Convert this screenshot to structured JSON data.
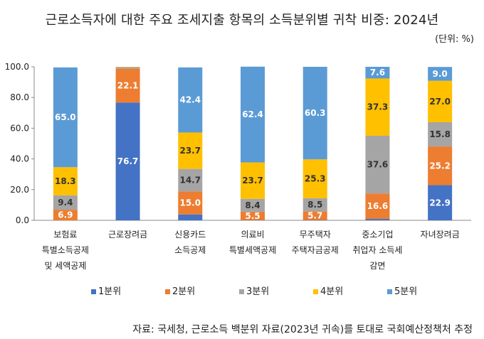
{
  "title": "근로소득자에 대한 주요 조세지출 항목의 소득분위별 귀착 비중: 2024년",
  "unit": "(단위: %)",
  "source": "자료: 국세청, 근로소득 백분위 자료(2023년 귀속)를 토대로 국회예산정책처 추정",
  "colors": {
    "1분위": "#4472c4",
    "2분위": "#ed7d31",
    "3분위": "#a5a5a5",
    "4분위": "#ffc000",
    "5분위": "#5b9bd5"
  },
  "chart_data": {
    "type": "bar",
    "stacked": true,
    "categories": [
      [
        "보험료",
        "특별소득공제",
        "및 세액공제"
      ],
      [
        "근로장려금"
      ],
      [
        "신용카드",
        "소득공제"
      ],
      [
        "의료비",
        "특별세액공제"
      ],
      [
        "무주택자",
        "주택자금공제"
      ],
      [
        "중소기업",
        "취업자 소득세",
        "감면"
      ],
      [
        "자녀장려금"
      ]
    ],
    "series": [
      {
        "name": "1분위",
        "values": [
          0.0,
          76.7,
          3.8,
          0.1,
          0.2,
          0.9,
          22.9
        ]
      },
      {
        "name": "2분위",
        "values": [
          6.9,
          22.1,
          15.0,
          5.5,
          5.7,
          16.6,
          25.2
        ]
      },
      {
        "name": "3분위",
        "values": [
          9.4,
          1.0,
          14.7,
          8.4,
          8.5,
          37.6,
          15.8
        ]
      },
      {
        "name": "4분위",
        "values": [
          18.3,
          0.2,
          23.7,
          23.7,
          25.3,
          37.3,
          27.0
        ]
      },
      {
        "name": "5분위",
        "values": [
          65.0,
          0.0,
          42.4,
          62.4,
          60.3,
          7.6,
          9.0
        ]
      }
    ],
    "data_labels": [
      [
        "",
        "6.9",
        "9.4",
        "18.3",
        "65.0"
      ],
      [
        "76.7",
        "22.1",
        "",
        "",
        ""
      ],
      [
        "",
        "15.0",
        "14.7",
        "23.7",
        "42.4"
      ],
      [
        "",
        "5.5",
        "8.4",
        "23.7",
        "62.4"
      ],
      [
        "",
        "5.7",
        "8.5",
        "25.3",
        "60.3"
      ],
      [
        "",
        "16.6",
        "37.6",
        "37.3",
        "7.6"
      ],
      [
        "22.9",
        "25.2",
        "15.8",
        "27.0",
        "9.0"
      ]
    ],
    "yticks": [
      "0.0",
      "20.0",
      "40.0",
      "60.0",
      "80.0",
      "100.0"
    ],
    "ylim": [
      0,
      100
    ],
    "grid": false,
    "legend_position": "bottom"
  }
}
